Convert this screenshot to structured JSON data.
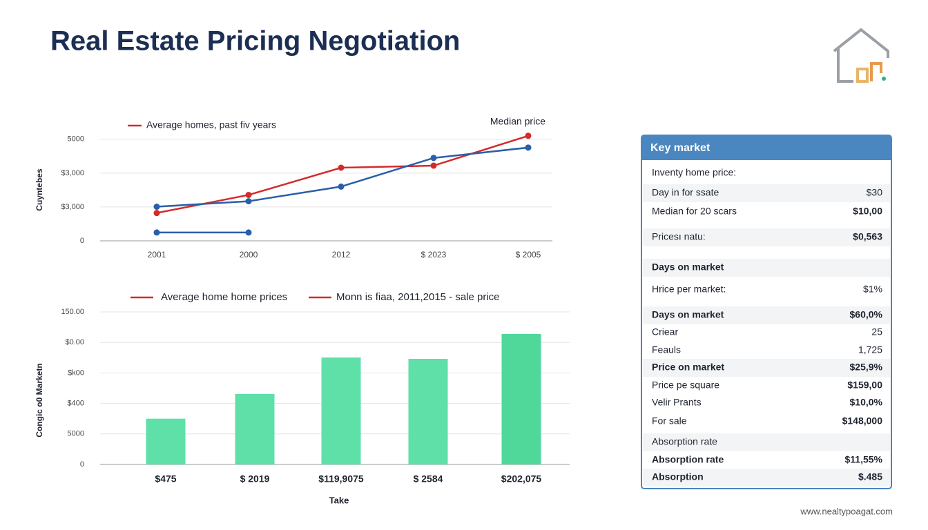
{
  "title": "Real Estate Pricing Negotiation",
  "chart_data": [
    {
      "type": "line",
      "y_label": "Cuyntebes",
      "categories": [
        "2001",
        "2000",
        "2012",
        "$ 2023",
        "$ 2005"
      ],
      "series": [
        {
          "name": "Average homes, past fiv years",
          "color": "#d42a2a",
          "values": [
            1370,
            2260,
            3600,
            3700,
            5170
          ]
        },
        {
          "name": "Median price",
          "color": "#2a5ea8",
          "values": [
            1680,
            1950,
            2670,
            4080,
            4590
          ]
        },
        {
          "color": "#2a5ea8",
          "values": [
            410,
            410,
            null,
            null,
            null
          ]
        }
      ],
      "ylim": [
        0,
        5400
      ],
      "yticks": [
        0,
        {
          "value": 1667,
          "label": "$3,000"
        },
        {
          "value": 3333,
          "label": "$3,000"
        },
        5000
      ],
      "grid": true
    },
    {
      "type": "bar",
      "x_label": "Take",
      "y_label": "Congic o0 Marketn",
      "legend": [
        {
          "name": "Average home home prices",
          "color": "#d42a2a"
        },
        {
          "name": "Monn is fiaa, 2011,2015 - sale price",
          "color": "#d42a2a"
        }
      ],
      "categories": [
        "$475",
        "$ 2019",
        "$119,9075",
        "$ 2584",
        "$202,075"
      ],
      "values": [
        7500,
        11540,
        17530,
        17310,
        21380
      ],
      "colors": [
        "#5ee0a8",
        "#5ee0a8",
        "#5ee0a8",
        "#5ee0a8",
        "#4fd89a"
      ],
      "ylim": [
        0,
        25000
      ],
      "yticks": [
        0,
        5000,
        {
          "value": 10000,
          "label": "$400"
        },
        {
          "value": 15000,
          "label": "$k00"
        },
        {
          "value": 20000,
          "label": "$0.00"
        },
        {
          "value": 25000,
          "label": "150.00"
        }
      ],
      "grid": true
    }
  ],
  "table": {
    "title": "Key market",
    "rows": [
      [
        "Inventy home price:"
      ],
      [
        "Day in for ssate",
        "$30"
      ],
      [
        "Median for 20 scars",
        "$10,00"
      ],
      [
        "Pricesı natu:",
        "$0,563"
      ],
      [
        "Days on market"
      ],
      [
        "Hrice per market:",
        "$1%"
      ],
      [
        "Days on market",
        "$60,0%"
      ],
      [
        "Criear",
        "25"
      ],
      [
        "Feauls",
        "1,725"
      ],
      [
        "Price on market",
        "$25,9%"
      ],
      [
        "Price pe square",
        "$159,00"
      ],
      [
        "Velir Prants",
        "$10,0%"
      ],
      [
        "For sale",
        "$148,000"
      ],
      [
        "Absorption rate"
      ],
      [
        "Absorption rate",
        "$11,55%"
      ],
      [
        "Absorption",
        "$.485"
      ]
    ]
  },
  "footer": "www.nealtypoagat.com"
}
